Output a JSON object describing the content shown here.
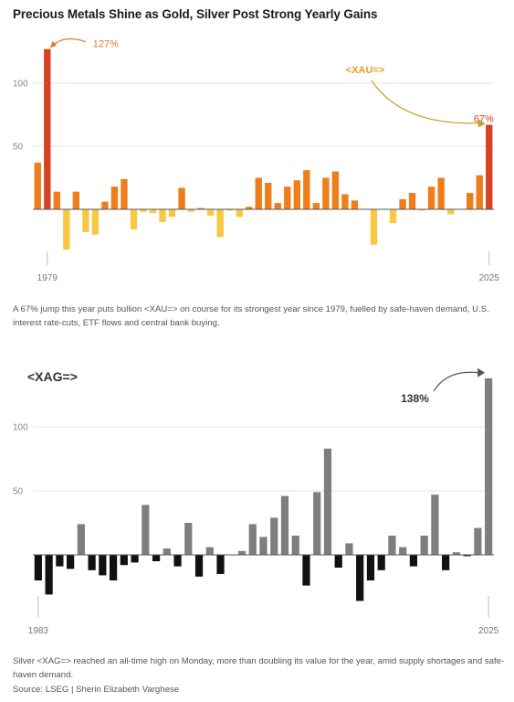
{
  "title": "Precious Metals Shine as Gold, Silver Post Strong Yearly Gains",
  "colors": {
    "gold_positive": "#EE7D1B",
    "gold_negative": "#F7C844",
    "gold_highlight": "#D64323",
    "gold_annotation": "#E07B2E",
    "gold_ticker": "#E3A01A",
    "silver_positive": "#7E7E7E",
    "silver_negative": "#111111"
  },
  "gold": {
    "caption": "A 67% jump this year puts bullion <XAU=> on course for its strongest year since 1979, fuelled by safe-haven demand, U.S. interest rate-cuts, ETF flows and central bank buying.",
    "chart_data": {
      "type": "bar",
      "ticker": "<XAU=>",
      "x": [
        1978,
        1979,
        1980,
        1981,
        1982,
        1983,
        1984,
        1985,
        1986,
        1987,
        1988,
        1989,
        1990,
        1991,
        1992,
        1993,
        1994,
        1995,
        1996,
        1997,
        1998,
        1999,
        2000,
        2001,
        2002,
        2003,
        2004,
        2005,
        2006,
        2007,
        2008,
        2009,
        2010,
        2011,
        2012,
        2013,
        2014,
        2015,
        2016,
        2017,
        2018,
        2019,
        2020,
        2021,
        2022,
        2023,
        2024,
        2025
      ],
      "values": [
        37,
        127,
        14,
        -32,
        14,
        -18,
        -20,
        6,
        18,
        24,
        -16,
        -2,
        -3,
        -10,
        -6,
        17,
        -2,
        1,
        -5,
        -22,
        -1,
        -6,
        2,
        25,
        21,
        5,
        18,
        23,
        31,
        5,
        25,
        30,
        12,
        7,
        0,
        -28,
        0,
        -11,
        8,
        13,
        -1,
        18,
        25,
        -4,
        0,
        13,
        27,
        67
      ],
      "highlight_x": [
        1979,
        2025
      ],
      "annotations": [
        {
          "x": 1979,
          "label": "127%"
        },
        {
          "x": 2025,
          "label": "67%"
        }
      ],
      "x_labels": [
        "1979",
        "2025"
      ],
      "y_ticks": [
        50,
        100
      ],
      "ylim": [
        -40,
        140
      ],
      "grid": true
    }
  },
  "silver": {
    "caption": "Silver <XAG=> reached an all-time high on Monday, more than doubling its value for the year, amid supply shortages and safe-haven demand.",
    "chart_data": {
      "type": "bar",
      "ticker": "<XAG=>",
      "x": [
        1983,
        1984,
        1985,
        1986,
        1987,
        1988,
        1989,
        1990,
        1991,
        1992,
        1993,
        1994,
        1995,
        1996,
        1997,
        1998,
        1999,
        2000,
        2001,
        2002,
        2003,
        2004,
        2005,
        2006,
        2007,
        2008,
        2009,
        2010,
        2011,
        2012,
        2013,
        2014,
        2015,
        2016,
        2017,
        2018,
        2019,
        2020,
        2021,
        2022,
        2023,
        2024,
        2025
      ],
      "values": [
        -20,
        -31,
        -9,
        -11,
        24,
        -12,
        -16,
        -20,
        -8,
        -6,
        39,
        -5,
        5,
        -9,
        25,
        -17,
        6,
        -15,
        0,
        3,
        24,
        14,
        29,
        46,
        15,
        -24,
        49,
        83,
        -10,
        9,
        -36,
        -20,
        -12,
        15,
        6,
        -9,
        15,
        47,
        -12,
        2,
        -1,
        21,
        138
      ],
      "annotations": [
        {
          "x": 2025,
          "label": "138%"
        }
      ],
      "x_labels": [
        "1983",
        "2025"
      ],
      "y_ticks": [
        50,
        100
      ],
      "ylim": [
        -50,
        145
      ],
      "grid": true
    }
  },
  "source": "Source: LSEG | Sherin Elizabeth Varghese"
}
